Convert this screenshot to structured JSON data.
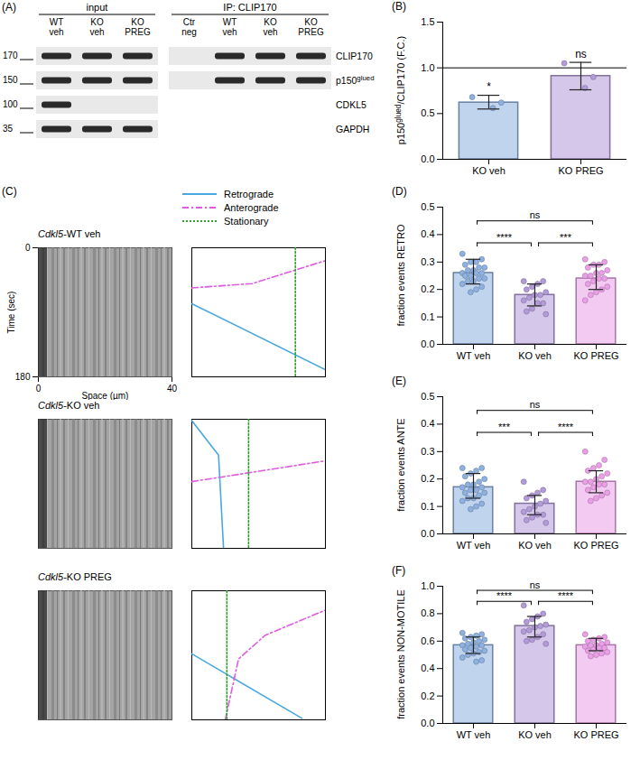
{
  "blot": {
    "panel": "(A)",
    "groups": [
      {
        "title": "input",
        "lanes": [
          "WT veh",
          "KO veh",
          "KO PREG"
        ]
      },
      {
        "title": "IP: CLIP170",
        "lanes": [
          "Ctr neg",
          "WT veh",
          "KO veh",
          "KO PREG"
        ]
      }
    ],
    "rows": [
      {
        "protein": "CLIP170",
        "mw": 170,
        "bands": [
          [
            true,
            true,
            true
          ],
          [
            false,
            true,
            true,
            true
          ]
        ]
      },
      {
        "protein": "p150glued",
        "superscript": "glued",
        "mw": 150,
        "bands": [
          [
            true,
            true,
            true
          ],
          [
            false,
            true,
            true,
            true
          ]
        ]
      },
      {
        "protein": "CDKL5",
        "mw": 100,
        "bands": [
          [
            true,
            false,
            false
          ]
        ]
      },
      {
        "protein": "GAPDH",
        "mw": 35,
        "bands": [
          [
            true,
            true,
            true
          ]
        ]
      }
    ]
  },
  "chart_data": [
    {
      "panel": "(B)",
      "type": "bar",
      "categories": [
        "KO veh",
        "KO PREG"
      ],
      "values": [
        0.62,
        0.91
      ],
      "error": [
        [
          0.55,
          0.7
        ],
        [
          0.76,
          1.06
        ]
      ],
      "points": [
        [
          0.68,
          0.62,
          0.56
        ],
        [
          1.05,
          0.9,
          0.78
        ]
      ],
      "colors": [
        "#8eb1e0",
        "#b39ad8"
      ],
      "significance": [
        "*",
        "ns"
      ],
      "hline": 1.0,
      "ylabel": "p150glued/CLIP170 (F.C.)",
      "ylabel_superscript": "glued",
      "ylim": [
        0,
        1.5
      ],
      "yticks": [
        {
          "value": 0,
          "label": "0.0"
        },
        {
          "value": 0.5,
          "label": "0.5"
        },
        {
          "value": 1.0,
          "label": "1.0"
        },
        {
          "value": 1.5,
          "label": "1.5"
        }
      ]
    },
    {
      "panel": "(D)",
      "type": "bar",
      "categories": [
        "WT veh",
        "KO veh",
        "KO PREG"
      ],
      "values": [
        0.26,
        0.18,
        0.24
      ],
      "error": [
        [
          0.22,
          0.31
        ],
        [
          0.14,
          0.22
        ],
        [
          0.2,
          0.29
        ]
      ],
      "points": [
        [
          0.33,
          0.31,
          0.3,
          0.3,
          0.29,
          0.28,
          0.28,
          0.27,
          0.27,
          0.26,
          0.26,
          0.26,
          0.25,
          0.25,
          0.24,
          0.24,
          0.23,
          0.23,
          0.22,
          0.21,
          0.2,
          0.19
        ],
        [
          0.23,
          0.23,
          0.22,
          0.21,
          0.2,
          0.19,
          0.18,
          0.18,
          0.17,
          0.16,
          0.15,
          0.15,
          0.13,
          0.12,
          0.11
        ],
        [
          0.31,
          0.3,
          0.29,
          0.29,
          0.28,
          0.27,
          0.26,
          0.26,
          0.25,
          0.25,
          0.24,
          0.24,
          0.23,
          0.22,
          0.21,
          0.2,
          0.19,
          0.18,
          0.16
        ]
      ],
      "colors": [
        "#8eb1e0",
        "#b39ad8",
        "#ea9fe6"
      ],
      "comparisons": [
        {
          "from": 0,
          "to": 1,
          "label": "****",
          "y": 0.37
        },
        {
          "from": 1,
          "to": 2,
          "label": "***",
          "y": 0.37
        },
        {
          "from": 0,
          "to": 2,
          "label": "ns",
          "y": 0.45
        }
      ],
      "ylabel": "fraction events RETRO",
      "ylim": [
        0,
        0.5
      ],
      "yticks": [
        {
          "value": 0,
          "label": "0.0"
        },
        0.1,
        0.2,
        0.3,
        0.4,
        0.5
      ]
    },
    {
      "panel": "(E)",
      "type": "bar",
      "categories": [
        "WT veh",
        "KO veh",
        "KO PREG"
      ],
      "values": [
        0.17,
        0.11,
        0.19
      ],
      "error": [
        [
          0.13,
          0.22
        ],
        [
          0.07,
          0.14
        ],
        [
          0.15,
          0.23
        ]
      ],
      "points": [
        [
          0.24,
          0.24,
          0.23,
          0.22,
          0.21,
          0.2,
          0.19,
          0.18,
          0.18,
          0.17,
          0.17,
          0.16,
          0.16,
          0.15,
          0.15,
          0.14,
          0.13,
          0.13,
          0.12,
          0.11,
          0.1,
          0.09
        ],
        [
          0.19,
          0.16,
          0.15,
          0.14,
          0.13,
          0.12,
          0.11,
          0.1,
          0.09,
          0.08,
          0.07,
          0.07,
          0.06,
          0.05,
          0.04
        ],
        [
          0.3,
          0.27,
          0.25,
          0.24,
          0.23,
          0.22,
          0.21,
          0.2,
          0.19,
          0.19,
          0.18,
          0.18,
          0.17,
          0.16,
          0.15,
          0.14,
          0.13,
          0.12
        ]
      ],
      "colors": [
        "#8eb1e0",
        "#b39ad8",
        "#ea9fe6"
      ],
      "comparisons": [
        {
          "from": 0,
          "to": 1,
          "label": "***",
          "y": 0.37
        },
        {
          "from": 1,
          "to": 2,
          "label": "****",
          "y": 0.37
        },
        {
          "from": 0,
          "to": 2,
          "label": "ns",
          "y": 0.45
        }
      ],
      "ylabel": "fraction events ANTE",
      "ylim": [
        0,
        0.5
      ],
      "yticks": [
        {
          "value": 0,
          "label": "0.0"
        },
        0.1,
        0.2,
        0.3,
        0.4,
        0.5
      ]
    },
    {
      "panel": "(F)",
      "type": "bar",
      "categories": [
        "WT veh",
        "KO veh",
        "KO PREG"
      ],
      "values": [
        0.57,
        0.71,
        0.57
      ],
      "error": [
        [
          0.51,
          0.63
        ],
        [
          0.63,
          0.78
        ],
        [
          0.53,
          0.62
        ]
      ],
      "points": [
        [
          0.66,
          0.65,
          0.64,
          0.63,
          0.62,
          0.61,
          0.6,
          0.59,
          0.58,
          0.57,
          0.57,
          0.56,
          0.55,
          0.54,
          0.53,
          0.52,
          0.51,
          0.5,
          0.48,
          0.46,
          0.45
        ],
        [
          0.86,
          0.8,
          0.78,
          0.76,
          0.74,
          0.72,
          0.71,
          0.7,
          0.68,
          0.67,
          0.65,
          0.63,
          0.61,
          0.6,
          0.58
        ],
        [
          0.65,
          0.63,
          0.62,
          0.61,
          0.6,
          0.59,
          0.58,
          0.57,
          0.57,
          0.56,
          0.55,
          0.55,
          0.54,
          0.53,
          0.52,
          0.51,
          0.5,
          0.49
        ]
      ],
      "colors": [
        "#8eb1e0",
        "#b39ad8",
        "#ea9fe6"
      ],
      "comparisons": [
        {
          "from": 0,
          "to": 1,
          "label": "****",
          "y": 0.89
        },
        {
          "from": 1,
          "to": 2,
          "label": "****",
          "y": 0.89
        },
        {
          "from": 0,
          "to": 2,
          "label": "ns",
          "y": 0.97
        }
      ],
      "ylabel": "fraction events NON-MOTILE",
      "ylim": [
        0,
        1.0
      ],
      "yticks": [
        {
          "value": 0,
          "label": "0.0"
        },
        0.2,
        0.4,
        0.6,
        0.8,
        {
          "value": 1.0,
          "label": "1.0"
        }
      ]
    }
  ],
  "kymograph": {
    "panel": "(C)",
    "legend": [
      {
        "name": "Retrograde",
        "color": "#4aa8e0",
        "line_style": "solid"
      },
      {
        "name": "Anterograde",
        "color": "#e05ae0",
        "line_style": "dashdot"
      },
      {
        "name": "Stationary",
        "color": "#2ca02c",
        "line_style": "dotted"
      }
    ],
    "xlabel": "Space (µm)",
    "ylabel": "Time (sec)",
    "xlim": [
      0,
      40
    ],
    "ylim": [
      0,
      180
    ],
    "xticks": [
      0,
      40
    ],
    "yticks": [
      0,
      180
    ],
    "panels": [
      {
        "title": "Cdkl5-WT veh",
        "italic": "Cdkl5",
        "traces": [
          {
            "name": "Retrograde",
            "x": [
              0,
              40
            ],
            "y": [
              78,
              170
            ]
          },
          {
            "name": "Anterograde",
            "x": [
              0,
              18,
              40
            ],
            "y": [
              56,
              50,
              18
            ]
          },
          {
            "name": "Stationary",
            "x": [
              31,
              31
            ],
            "y": [
              0,
              180
            ]
          }
        ]
      },
      {
        "title": "Cdkl5-KO veh",
        "italic": "Cdkl5",
        "traces": [
          {
            "name": "Retrograde",
            "x": [
              0,
              8,
              9.5
            ],
            "y": [
              2,
              50,
              180
            ]
          },
          {
            "name": "Anterograde",
            "x": [
              0,
              40
            ],
            "y": [
              87,
              58
            ]
          },
          {
            "name": "Stationary",
            "x": [
              17,
              17
            ],
            "y": [
              0,
              180
            ]
          }
        ]
      },
      {
        "title": "Cdkl5-KO PREG",
        "italic": "Cdkl5",
        "traces": [
          {
            "name": "Retrograde",
            "x": [
              0,
              33
            ],
            "y": [
              88,
              178
            ]
          },
          {
            "name": "Anterograde",
            "x": [
              10,
              14,
              22,
              40
            ],
            "y": [
              180,
              95,
              62,
              27
            ]
          },
          {
            "name": "Stationary",
            "x": [
              10.5,
              10.5
            ],
            "y": [
              0,
              180
            ]
          }
        ]
      }
    ]
  }
}
